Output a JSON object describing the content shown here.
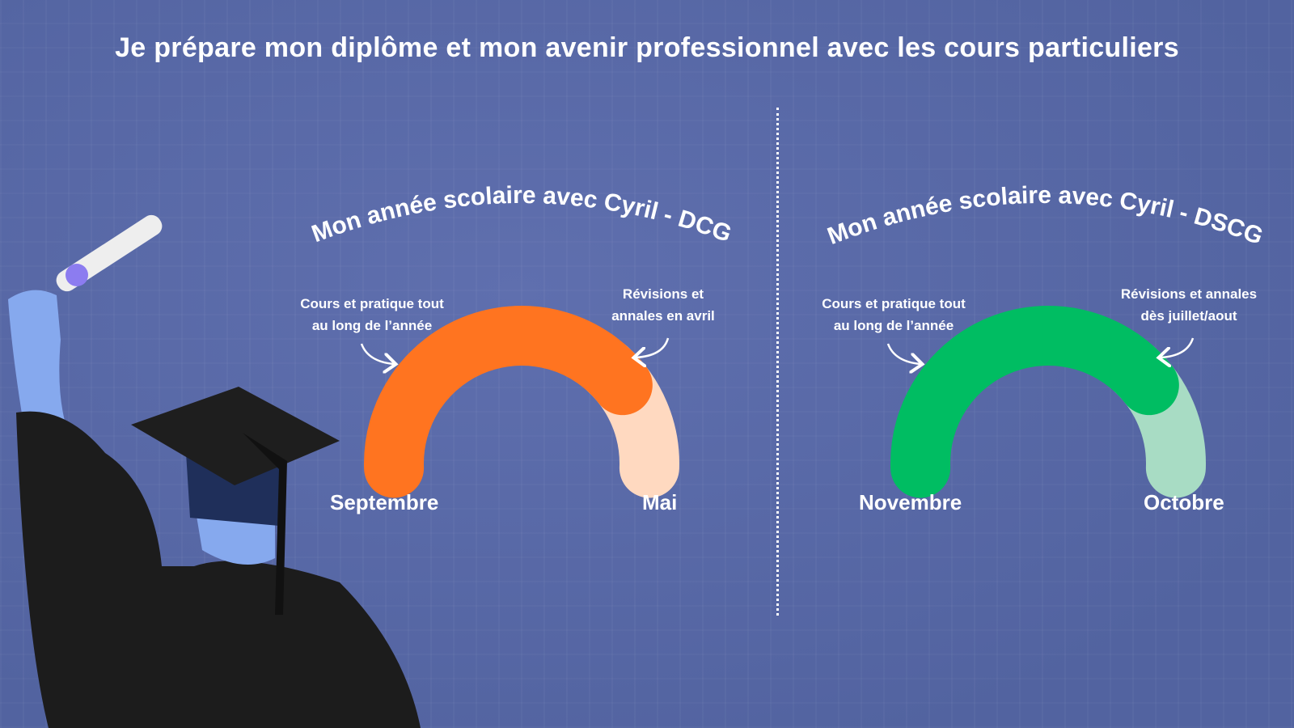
{
  "title": "Je prépare mon diplôme et mon avenir professionnel avec les cours particuliers",
  "gauges": [
    {
      "title": "Mon année scolaire avec Cyril - DCG",
      "left_note": [
        "Cours et pratique tout",
        "au long de l’année"
      ],
      "right_note": [
        "Révisions et",
        "annales en avril"
      ],
      "start_label": "Septembre",
      "end_label": "Mai",
      "main_fraction": 0.79,
      "main_color": "#ff7420",
      "rest_color": "#ffd9c0"
    },
    {
      "title": "Mon année scolaire avec Cyril - DSCG",
      "left_note": [
        "Cours et pratique tout",
        "au long de l’année"
      ],
      "right_note": [
        "Révisions et annales",
        "dès juillet/aout"
      ],
      "start_label": "Novembre",
      "end_label": "Octobre",
      "main_fraction": 0.79,
      "main_color": "#00bd62",
      "rest_color": "#a8dcc4"
    }
  ],
  "background_color": "#5a69a6"
}
